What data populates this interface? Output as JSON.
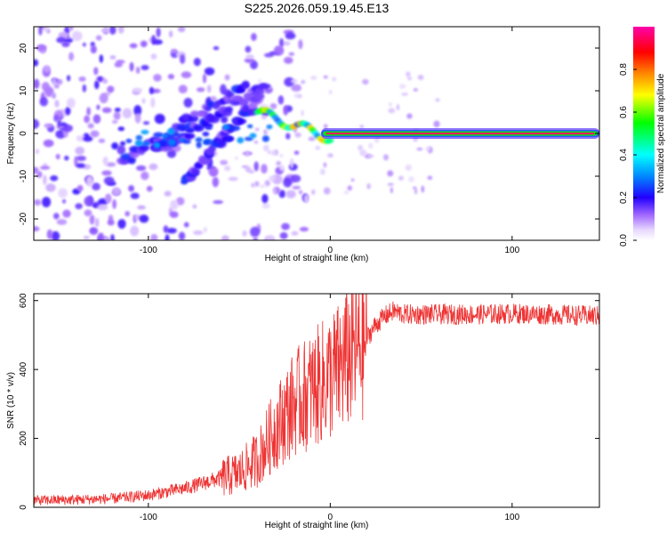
{
  "title": "S225.2026.059.19.45.E13",
  "chart_data": [
    {
      "type": "heatmap",
      "name": "spectrogram",
      "xlabel": "Height of straight line (km)",
      "ylabel": "Frequency (Hz)",
      "xlim": [
        -163,
        148
      ],
      "ylim": [
        -25,
        25
      ],
      "xticks": [
        -100,
        0,
        100
      ],
      "yticks": [
        -20,
        -10,
        0,
        10,
        20
      ],
      "colorbar": {
        "label": "Normalized spectral amplitude",
        "range": [
          0,
          1
        ],
        "ticks": [
          0.0,
          0.2,
          0.4,
          0.6,
          0.8
        ],
        "colors": [
          "#ffffff",
          "#e0ccff",
          "#9955ff",
          "#5511dd",
          "#0000ff",
          "#00ffff",
          "#00ff00",
          "#ffff00",
          "#ff8800",
          "#ff0000",
          "#ff00aa"
        ]
      },
      "features": {
        "carrier_line": {
          "x_start": -5,
          "x_end": 148,
          "frequency": 0,
          "amplitude": 0.95
        },
        "chirp_streaks": [
          {
            "x_start": -115,
            "x_end": -45,
            "f_start": -7,
            "f_end": 12
          },
          {
            "x_start": -95,
            "x_end": -35,
            "f_start": -4,
            "f_end": 11
          },
          {
            "x_start": -80,
            "x_end": -40,
            "f_start": -11,
            "f_end": 8
          }
        ]
      }
    },
    {
      "type": "line",
      "name": "snr",
      "xlabel": "Height of straight line (km)",
      "ylabel": "SNR (10 * v/v)",
      "xlim": [
        -163,
        148
      ],
      "ylim": [
        0,
        620
      ],
      "xticks": [
        -100,
        0,
        100
      ],
      "yticks": [
        0,
        200,
        400,
        600
      ],
      "color": "#ee3333",
      "series": [
        {
          "name": "SNR",
          "x": [
            -163,
            -140,
            -120,
            -100,
            -80,
            -60,
            -50,
            -40,
            -30,
            -20,
            -10,
            0,
            5,
            10,
            15,
            20,
            25,
            30,
            35,
            40,
            60,
            80,
            100,
            120,
            148
          ],
          "values": [
            20,
            22,
            25,
            35,
            55,
            85,
            100,
            140,
            230,
            300,
            340,
            380,
            400,
            440,
            460,
            490,
            530,
            555,
            570,
            560,
            560,
            560,
            562,
            560,
            555
          ]
        }
      ]
    }
  ]
}
